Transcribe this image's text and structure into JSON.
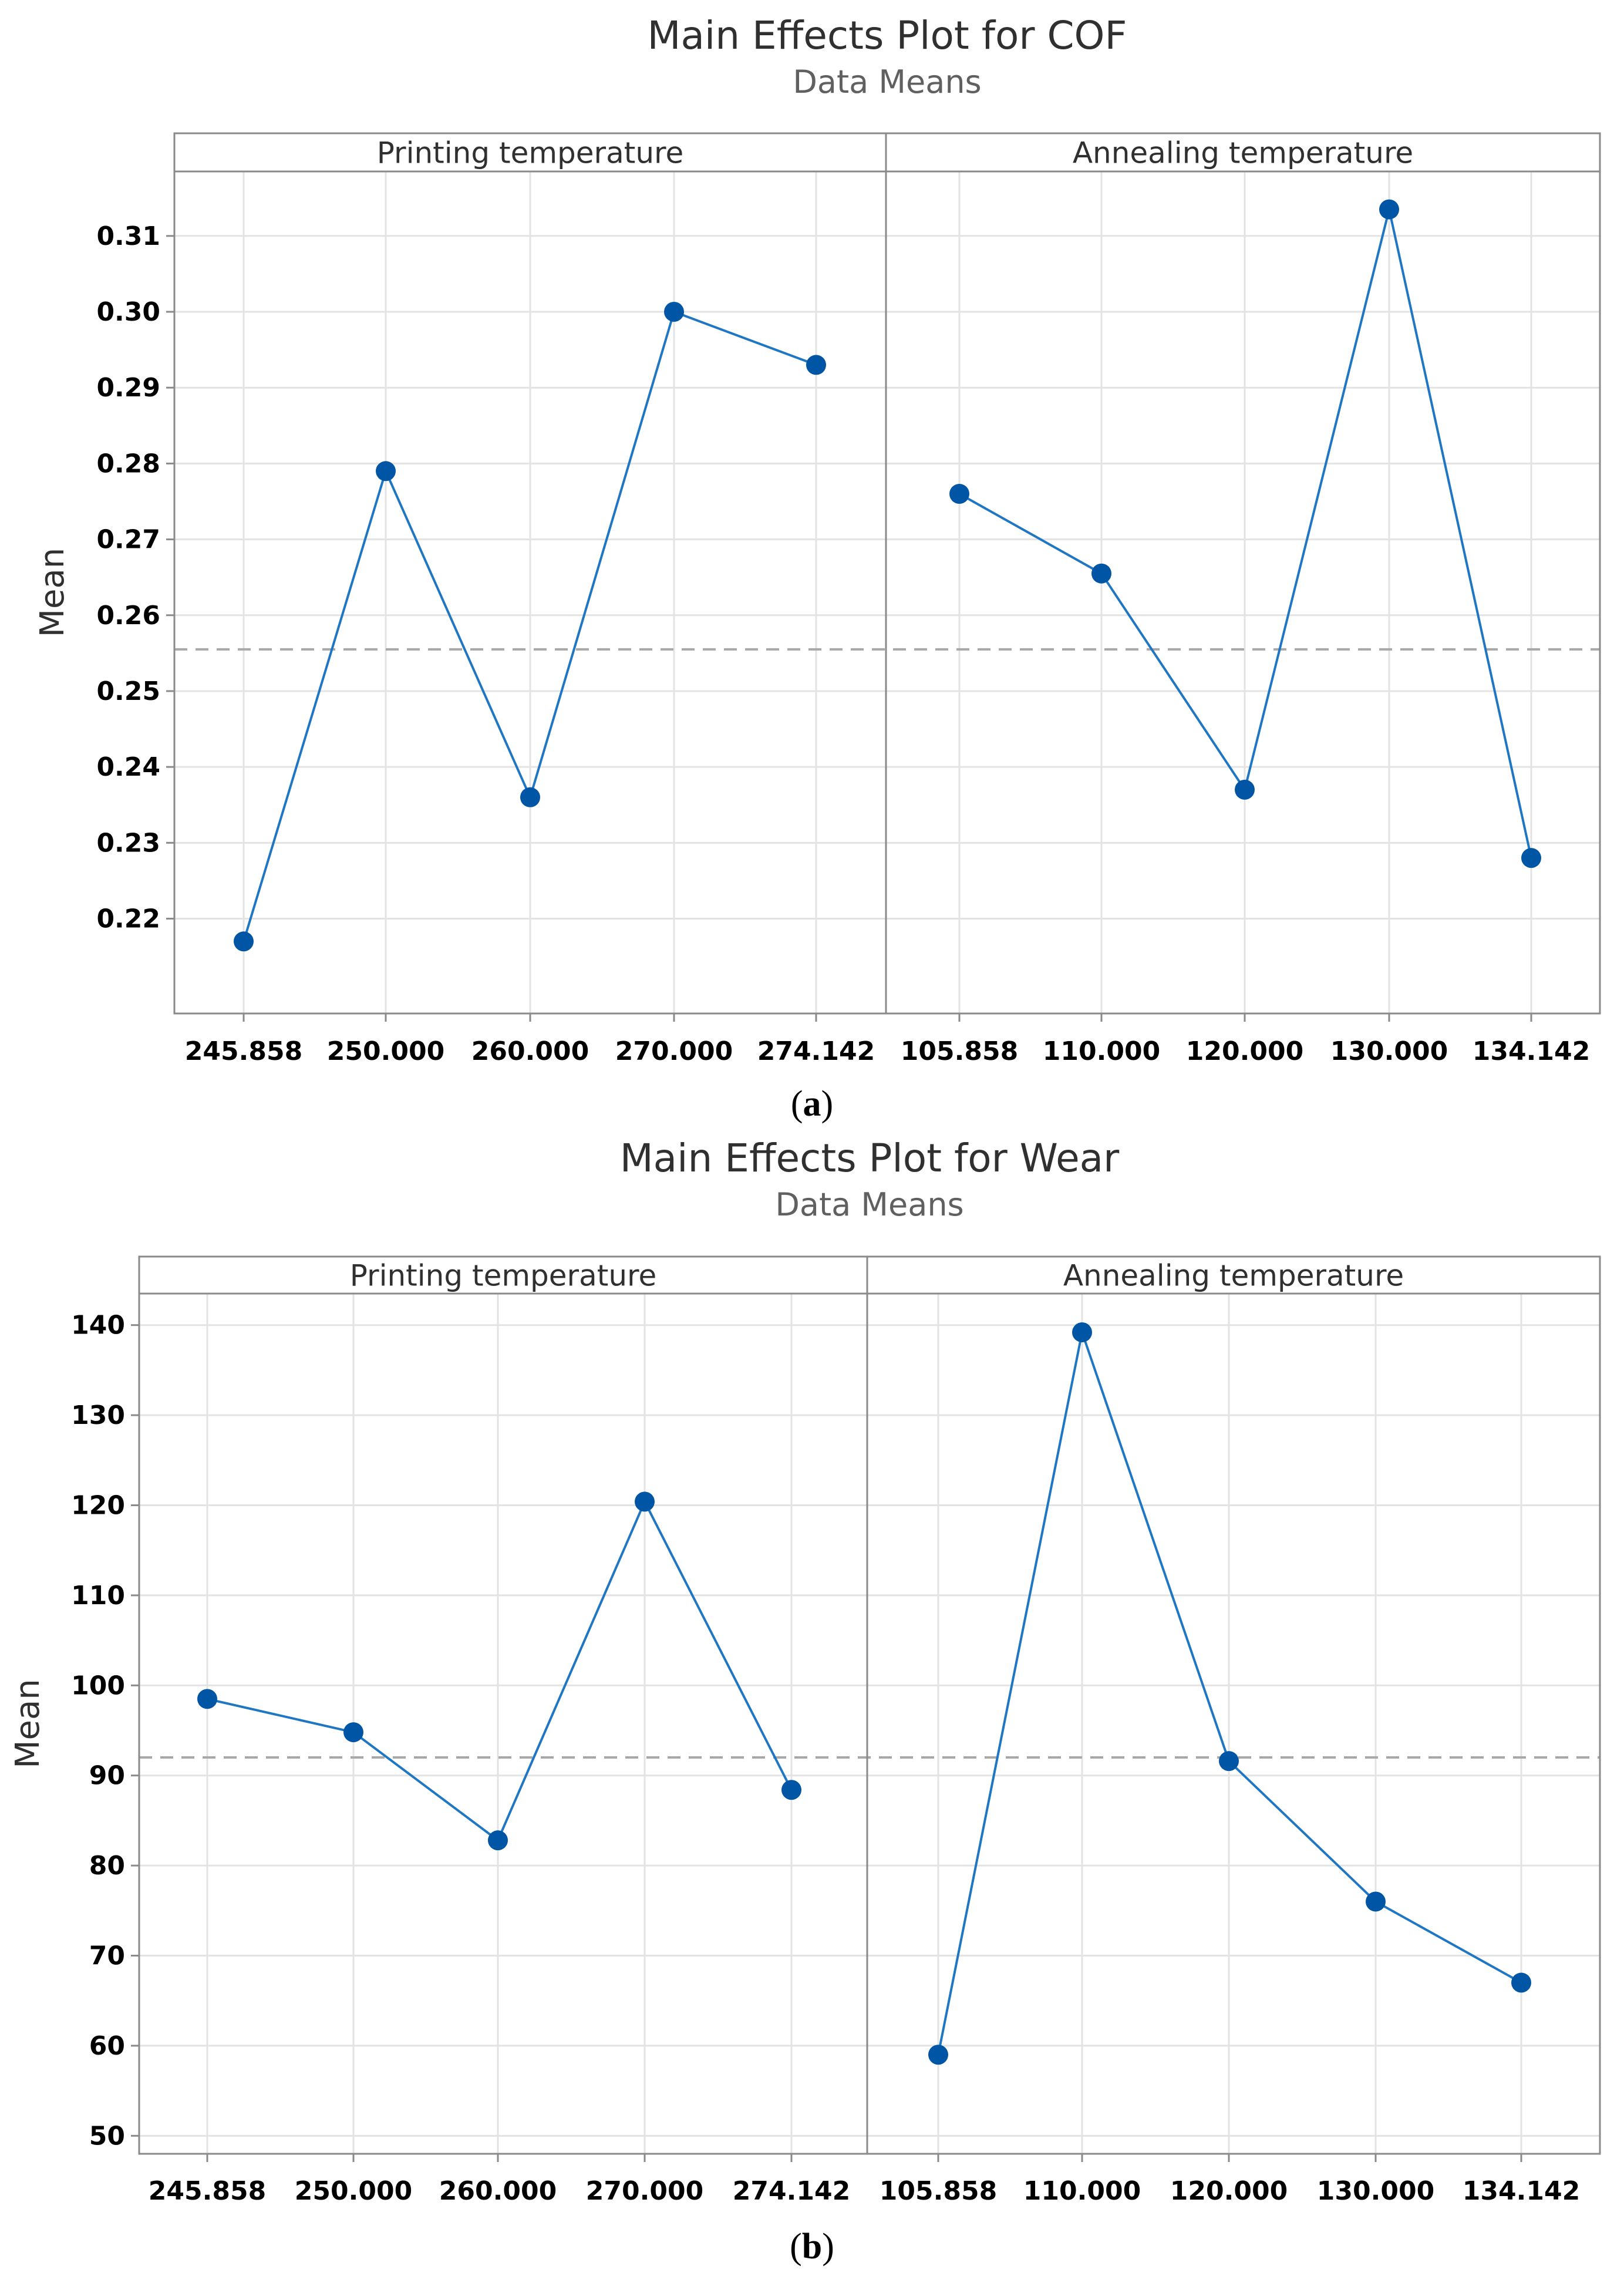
{
  "colors": {
    "series": "#1f77c4",
    "marker": "#0055a5",
    "grid": "#e3e3e3",
    "frame": "#8a8a8a",
    "reference_line": "#a8a8a8"
  },
  "chart_data": [
    {
      "type": "line",
      "title": "Main Effects Plot for COF",
      "subtitle": "Data Means",
      "caption_prefix": "(",
      "caption_letter": "a",
      "caption_suffix": ")",
      "ylabel": "Mean",
      "ylim": [
        0.2075,
        0.3185
      ],
      "yticks": [
        0.22,
        0.23,
        0.24,
        0.25,
        0.26,
        0.27,
        0.28,
        0.29,
        0.3,
        0.31
      ],
      "ytick_labels": [
        "0.22",
        "0.23",
        "0.24",
        "0.25",
        "0.26",
        "0.27",
        "0.28",
        "0.29",
        "0.30",
        "0.31"
      ],
      "grand_mean": 0.2555,
      "grid": true,
      "panels": [
        {
          "title": "Printing temperature",
          "categories": [
            "245.858",
            "250.000",
            "260.000",
            "270.000",
            "274.142"
          ],
          "values": [
            0.217,
            0.279,
            0.236,
            0.3,
            0.293
          ]
        },
        {
          "title": "Annealing temperature",
          "categories": [
            "105.858",
            "110.000",
            "120.000",
            "130.000",
            "134.142"
          ],
          "values": [
            0.276,
            0.2655,
            0.237,
            0.3135,
            0.228
          ]
        }
      ]
    },
    {
      "type": "line",
      "title": "Main Effects Plot for Wear",
      "subtitle": "Data Means",
      "caption_prefix": "(",
      "caption_letter": "b",
      "caption_suffix": ")",
      "ylabel": "Mean",
      "ylim": [
        48,
        143.5
      ],
      "yticks": [
        50,
        60,
        70,
        80,
        90,
        100,
        110,
        120,
        130,
        140
      ],
      "ytick_labels": [
        "50",
        "60",
        "70",
        "80",
        "90",
        "100",
        "110",
        "120",
        "130",
        "140"
      ],
      "grand_mean": 92.0,
      "grid": true,
      "panels": [
        {
          "title": "Printing temperature",
          "categories": [
            "245.858",
            "250.000",
            "260.000",
            "270.000",
            "274.142"
          ],
          "values": [
            98.5,
            94.8,
            82.8,
            120.4,
            88.4
          ]
        },
        {
          "title": "Annealing temperature",
          "categories": [
            "105.858",
            "110.000",
            "120.000",
            "130.000",
            "134.142"
          ],
          "values": [
            59.0,
            139.2,
            91.6,
            76.0,
            67.0
          ]
        }
      ]
    }
  ]
}
